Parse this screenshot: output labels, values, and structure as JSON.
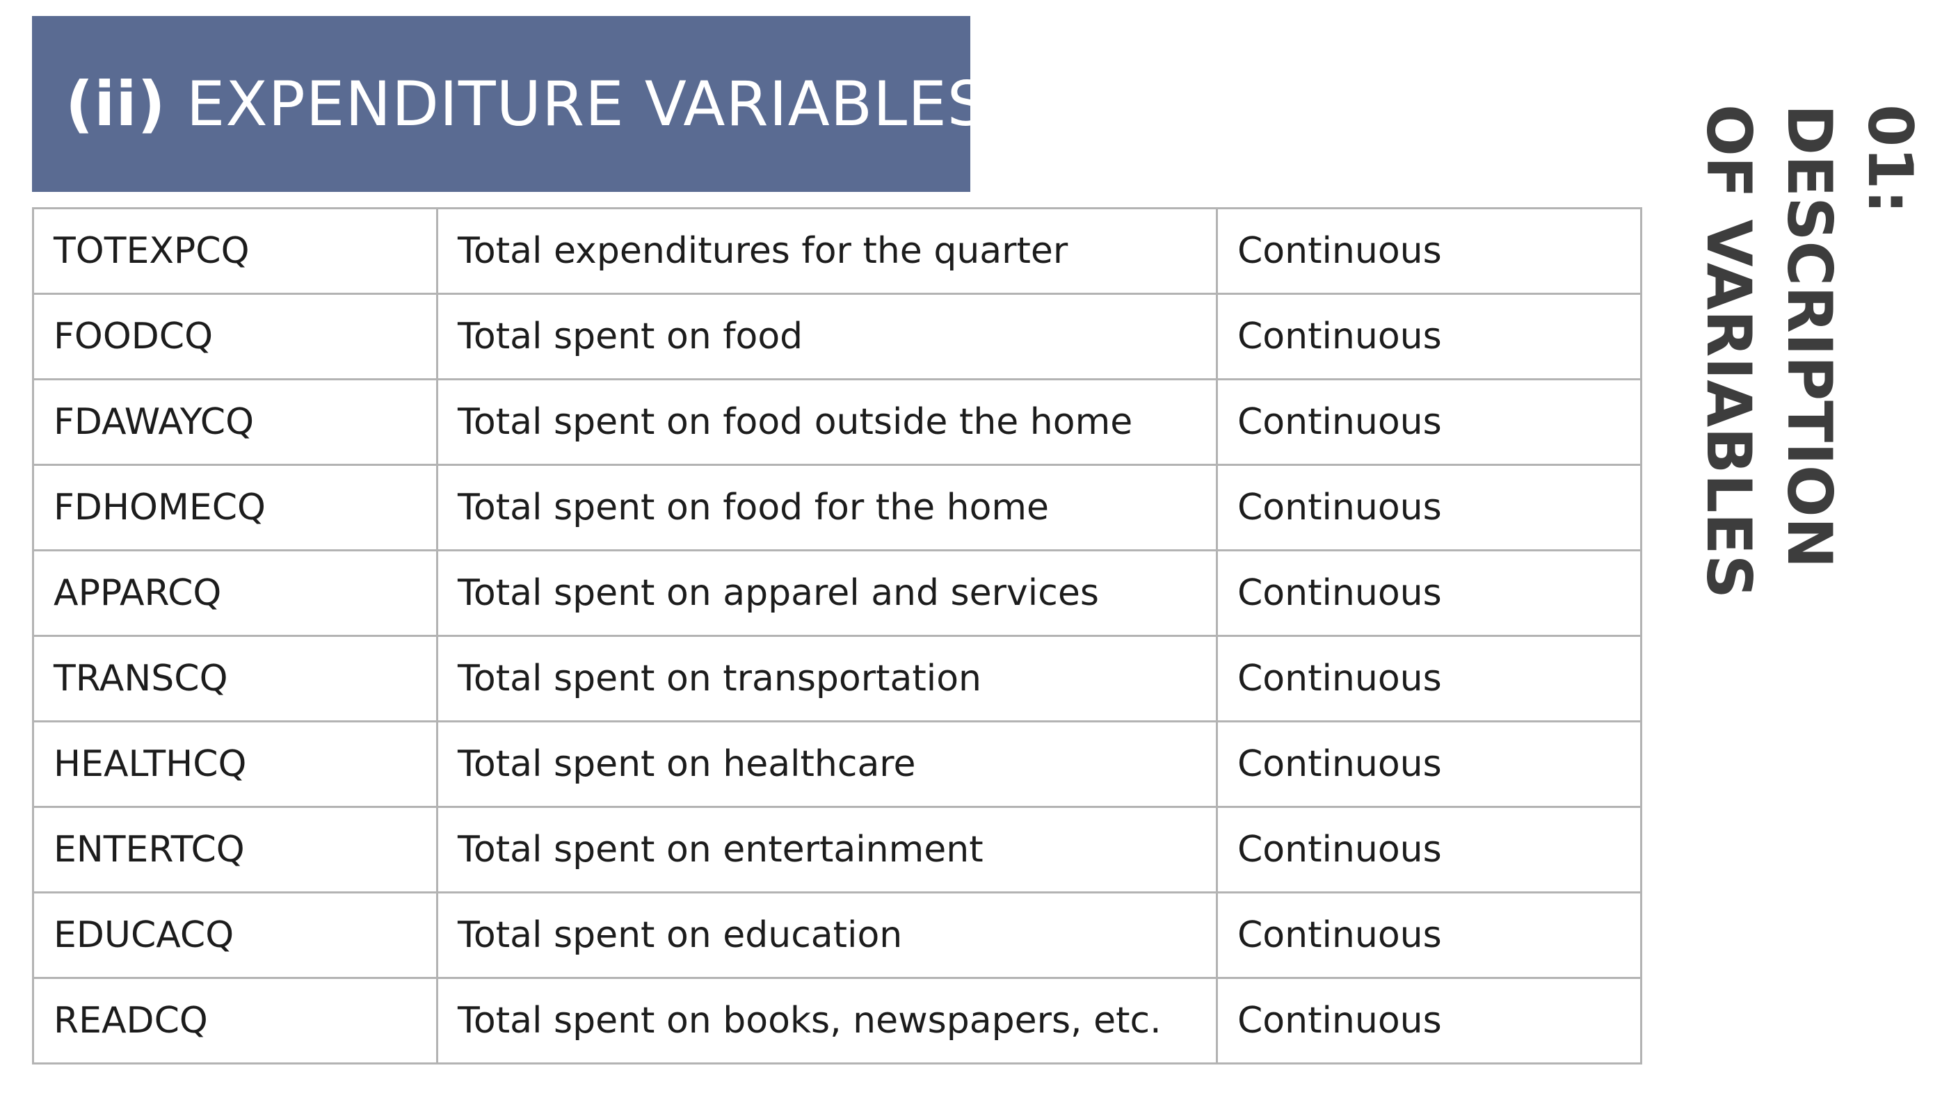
{
  "header": {
    "roman": "(ii)",
    "title": "EXPENDITURE VARIABLES"
  },
  "side_title": {
    "line1": "01:",
    "line2": "DESCRIPTION",
    "line3": "OF VARIABLES"
  },
  "colors": {
    "header_bg": "#5a6b92",
    "header_text": "#ffffff",
    "side_title": "#3d3d3d",
    "grid": "#b3b3b3"
  },
  "table": {
    "rows": [
      {
        "name": "TOTEXPCQ",
        "description": "Total expenditures for the quarter",
        "type": "Continuous"
      },
      {
        "name": "FOODCQ",
        "description": "Total spent on food",
        "type": "Continuous"
      },
      {
        "name": "FDAWAYCQ",
        "description": "Total spent on food outside the home",
        "type": "Continuous"
      },
      {
        "name": "FDHOMECQ",
        "description": "Total spent on food for the home",
        "type": "Continuous"
      },
      {
        "name": "APPARCQ",
        "description": "Total spent on apparel and services",
        "type": "Continuous"
      },
      {
        "name": "TRANSCQ",
        "description": "Total spent on transportation",
        "type": "Continuous"
      },
      {
        "name": "HEALTHCQ",
        "description": "Total spent on healthcare",
        "type": "Continuous"
      },
      {
        "name": "ENTERTCQ",
        "description": "Total spent on entertainment",
        "type": "Continuous"
      },
      {
        "name": "EDUCACQ",
        "description": "Total spent on education",
        "type": "Continuous"
      },
      {
        "name": "READCQ",
        "description": "Total spent on books, newspapers, etc.",
        "type": "Continuous"
      }
    ]
  }
}
